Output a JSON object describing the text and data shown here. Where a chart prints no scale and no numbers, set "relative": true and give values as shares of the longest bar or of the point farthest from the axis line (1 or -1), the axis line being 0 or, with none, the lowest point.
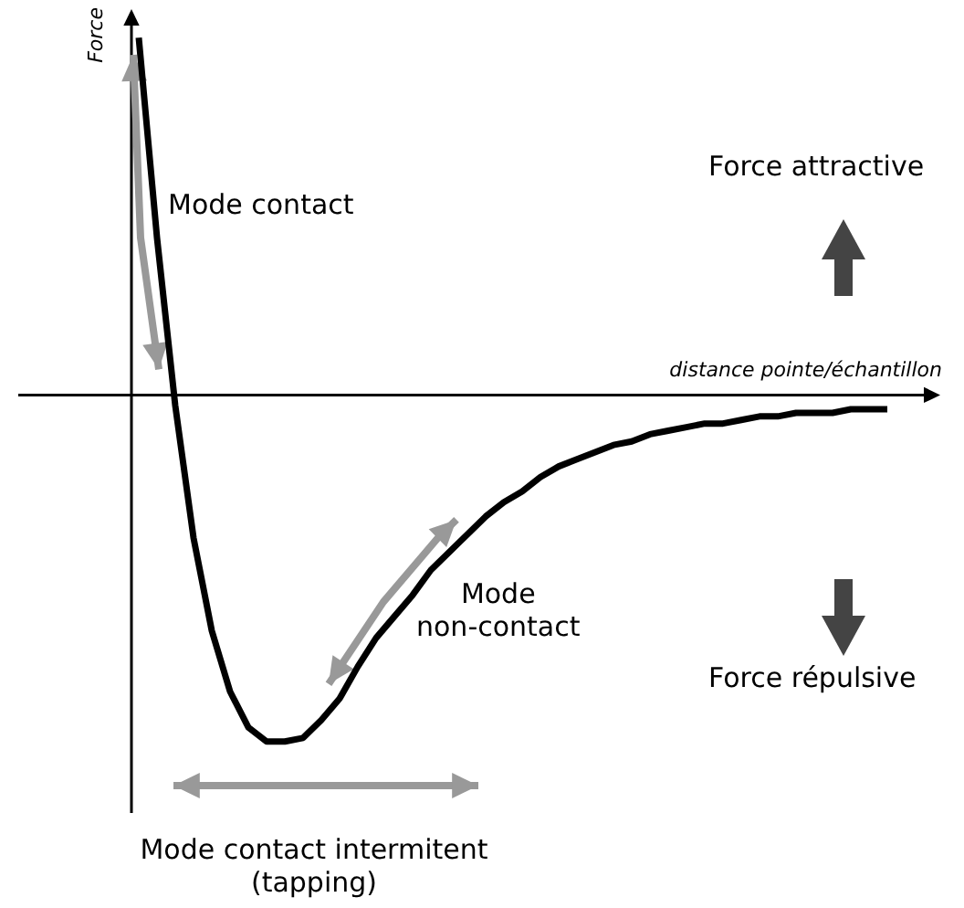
{
  "chart_data": {
    "type": "line",
    "relative": true,
    "tick_labels": false,
    "xlabel": "distance pointe/échantillon",
    "ylabel": "Force",
    "categories": [
      null,
      null,
      null,
      null,
      null,
      null,
      null,
      null,
      null,
      null,
      null,
      null,
      null,
      null,
      null,
      null,
      null,
      null,
      null,
      null,
      null,
      null,
      null,
      null,
      null,
      null,
      null,
      null,
      null,
      null,
      null,
      null,
      null,
      null,
      null,
      null,
      null,
      null,
      null,
      null,
      null,
      null
    ],
    "series": [
      {
        "color": "#000000",
        "values": [
          1.0,
          0.44,
          -0.03,
          -0.4,
          -0.66,
          -0.83,
          -0.93,
          -0.97,
          -0.97,
          -0.96,
          -0.91,
          -0.85,
          -0.76,
          -0.68,
          -0.62,
          -0.56,
          -0.49,
          -0.44,
          -0.39,
          -0.34,
          -0.3,
          -0.27,
          -0.23,
          -0.2,
          -0.18,
          -0.16,
          -0.14,
          -0.13,
          -0.11,
          -0.1,
          -0.09,
          -0.08,
          -0.08,
          -0.07,
          -0.06,
          -0.06,
          -0.05,
          -0.05,
          -0.05,
          -0.04,
          -0.04,
          -0.04
        ]
      }
    ],
    "annotations": [
      "Mode contact",
      "Mode\nnon-contact",
      "Mode contact intermitent\n(tapping)",
      "Force attractive",
      "Force répulsive"
    ]
  }
}
